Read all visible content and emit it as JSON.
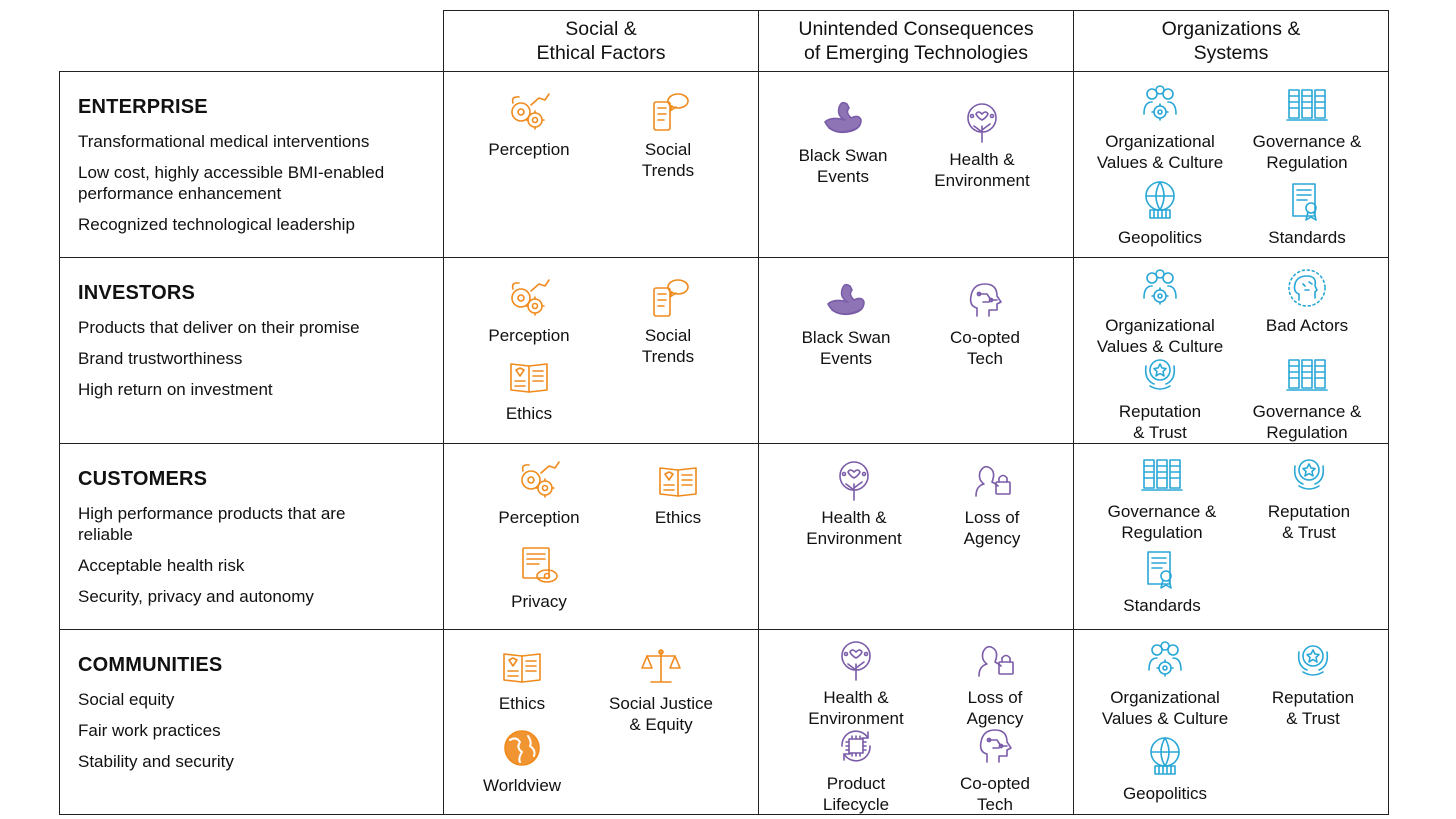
{
  "colors": {
    "social": "#F08A1C",
    "unintended": "#7A5CA8",
    "org": "#29A7D6",
    "border": "#222222"
  },
  "columns": [
    {
      "title": "Social &\nEthical Factors"
    },
    {
      "title": "Unintended Consequences\nof Emerging Technologies"
    },
    {
      "title": "Organizations &\nSystems"
    }
  ],
  "rows": [
    {
      "name": "ENTERPRISE",
      "goals": [
        "Transformational medical interventions",
        "Low cost, highly accessible BMI-enabled\nperformance enhancement",
        "Recognized technological leadership"
      ],
      "social": [
        {
          "label": "Perception",
          "icon": "perception-icon"
        },
        {
          "label": "Social\nTrends",
          "icon": "social-trends-icon"
        }
      ],
      "unintended": [
        {
          "label": "Black Swan\nEvents",
          "icon": "black-swan-icon"
        },
        {
          "label": "Health &\nEnvironment",
          "icon": "health-environment-icon"
        }
      ],
      "org": [
        {
          "label": "Organizational\nValues & Culture",
          "icon": "values-culture-icon"
        },
        {
          "label": "Governance &\nRegulation",
          "icon": "governance-icon"
        },
        {
          "label": "Geopolitics",
          "icon": "geopolitics-icon"
        },
        {
          "label": "Standards",
          "icon": "standards-icon"
        }
      ]
    },
    {
      "name": "INVESTORS",
      "goals": [
        "Products that deliver on their promise",
        "Brand trustworthiness",
        "High return on investment"
      ],
      "social": [
        {
          "label": "Perception",
          "icon": "perception-icon"
        },
        {
          "label": "Social\nTrends",
          "icon": "social-trends-icon"
        },
        {
          "label": "Ethics",
          "icon": "ethics-icon"
        }
      ],
      "unintended": [
        {
          "label": "Black Swan\nEvents",
          "icon": "black-swan-icon"
        },
        {
          "label": "Co-opted\nTech",
          "icon": "coopted-tech-icon"
        }
      ],
      "org": [
        {
          "label": "Organizational\nValues & Culture",
          "icon": "values-culture-icon"
        },
        {
          "label": "Bad Actors",
          "icon": "bad-actors-icon"
        },
        {
          "label": "Reputation\n& Trust",
          "icon": "reputation-icon"
        },
        {
          "label": "Governance &\nRegulation",
          "icon": "governance-icon"
        }
      ]
    },
    {
      "name": "CUSTOMERS",
      "goals": [
        "High performance products that are\nreliable",
        "Acceptable health risk",
        "Security, privacy and autonomy"
      ],
      "social": [
        {
          "label": "Perception",
          "icon": "perception-icon"
        },
        {
          "label": "Ethics",
          "icon": "ethics-icon"
        },
        {
          "label": "Privacy",
          "icon": "privacy-icon"
        }
      ],
      "unintended": [
        {
          "label": "Health &\nEnvironment",
          "icon": "health-environment-icon"
        },
        {
          "label": "Loss of\nAgency",
          "icon": "loss-of-agency-icon"
        }
      ],
      "org": [
        {
          "label": "Governance &\nRegulation",
          "icon": "governance-icon"
        },
        {
          "label": "Reputation\n& Trust",
          "icon": "reputation-icon"
        },
        {
          "label": "Standards",
          "icon": "standards-icon"
        }
      ]
    },
    {
      "name": "COMMUNITIES",
      "goals": [
        "Social equity",
        "Fair work practices",
        "Stability and security"
      ],
      "social": [
        {
          "label": "Ethics",
          "icon": "ethics-icon"
        },
        {
          "label": "Social Justice\n& Equity",
          "icon": "justice-scale-icon"
        },
        {
          "label": "Worldview",
          "icon": "worldview-globe-icon"
        }
      ],
      "unintended": [
        {
          "label": "Health &\nEnvironment",
          "icon": "health-environment-icon"
        },
        {
          "label": "Loss of\nAgency",
          "icon": "loss-of-agency-icon"
        },
        {
          "label": "Product\nLifecycle",
          "icon": "product-lifecycle-icon"
        },
        {
          "label": "Co-opted\nTech",
          "icon": "coopted-tech-icon"
        }
      ],
      "org": [
        {
          "label": "Organizational\nValues & Culture",
          "icon": "values-culture-icon"
        },
        {
          "label": "Reputation\n& Trust",
          "icon": "reputation-icon"
        },
        {
          "label": "Geopolitics",
          "icon": "geopolitics-icon"
        }
      ]
    }
  ]
}
